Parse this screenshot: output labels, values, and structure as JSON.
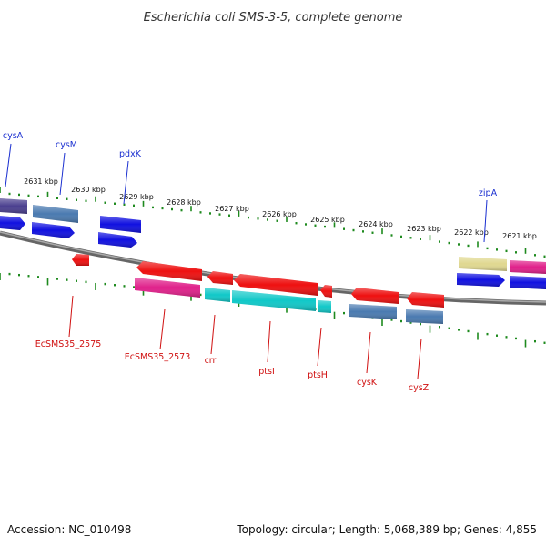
{
  "title": "Escherichia coli SMS-3-5, complete genome",
  "footer": {
    "accession": "Accession: NC_010498",
    "summary": "Topology: circular; Length: 5,068,389 bp; Genes: 4,855"
  },
  "kbp_labels": [
    "2631 kbp",
    "2630 kbp",
    "2629 kbp",
    "2628 kbp",
    "2627 kbp",
    "2626 kbp",
    "2625 kbp",
    "2624 kbp",
    "2623 kbp",
    "2622 kbp",
    "2621 kbp"
  ],
  "genes_top": [
    "cysA",
    "cysM",
    "pdxK",
    "zipA"
  ],
  "genes_bottom": [
    "EcSMS35_2575",
    "EcSMS35_2573",
    "crr",
    "ptsI",
    "ptsH",
    "cysK",
    "cysZ"
  ],
  "colors": {
    "backbone": "#888888",
    "ticks": "#1e8a1e",
    "gene_blue": "#1010e0",
    "gene_steel": "#4a7ab0",
    "gene_purple": "#4a3f8f",
    "gene_red": "#ee1010",
    "gene_pink": "#e0208a",
    "gene_cyan": "#10c8c8",
    "gene_khaki": "#e0d890",
    "label_top": "#1a2fd0",
    "label_bottom": "#d01010"
  }
}
